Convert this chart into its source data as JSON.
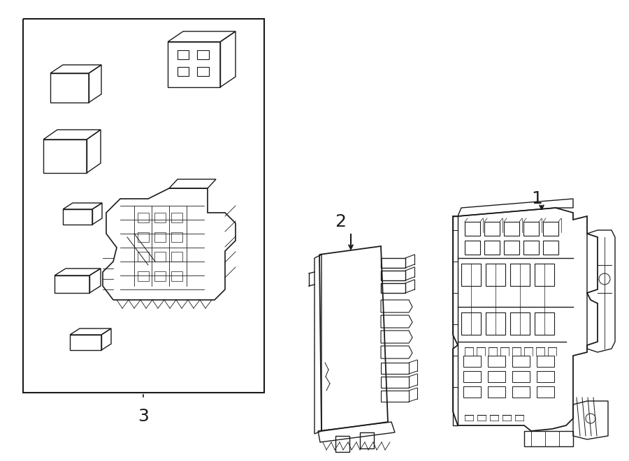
{
  "background_color": "#ffffff",
  "line_color": "#1a1a1a",
  "fig_width": 9.0,
  "fig_height": 6.61,
  "label_1": "1",
  "label_2": "2",
  "label_3": "3",
  "font_size_labels": 18
}
